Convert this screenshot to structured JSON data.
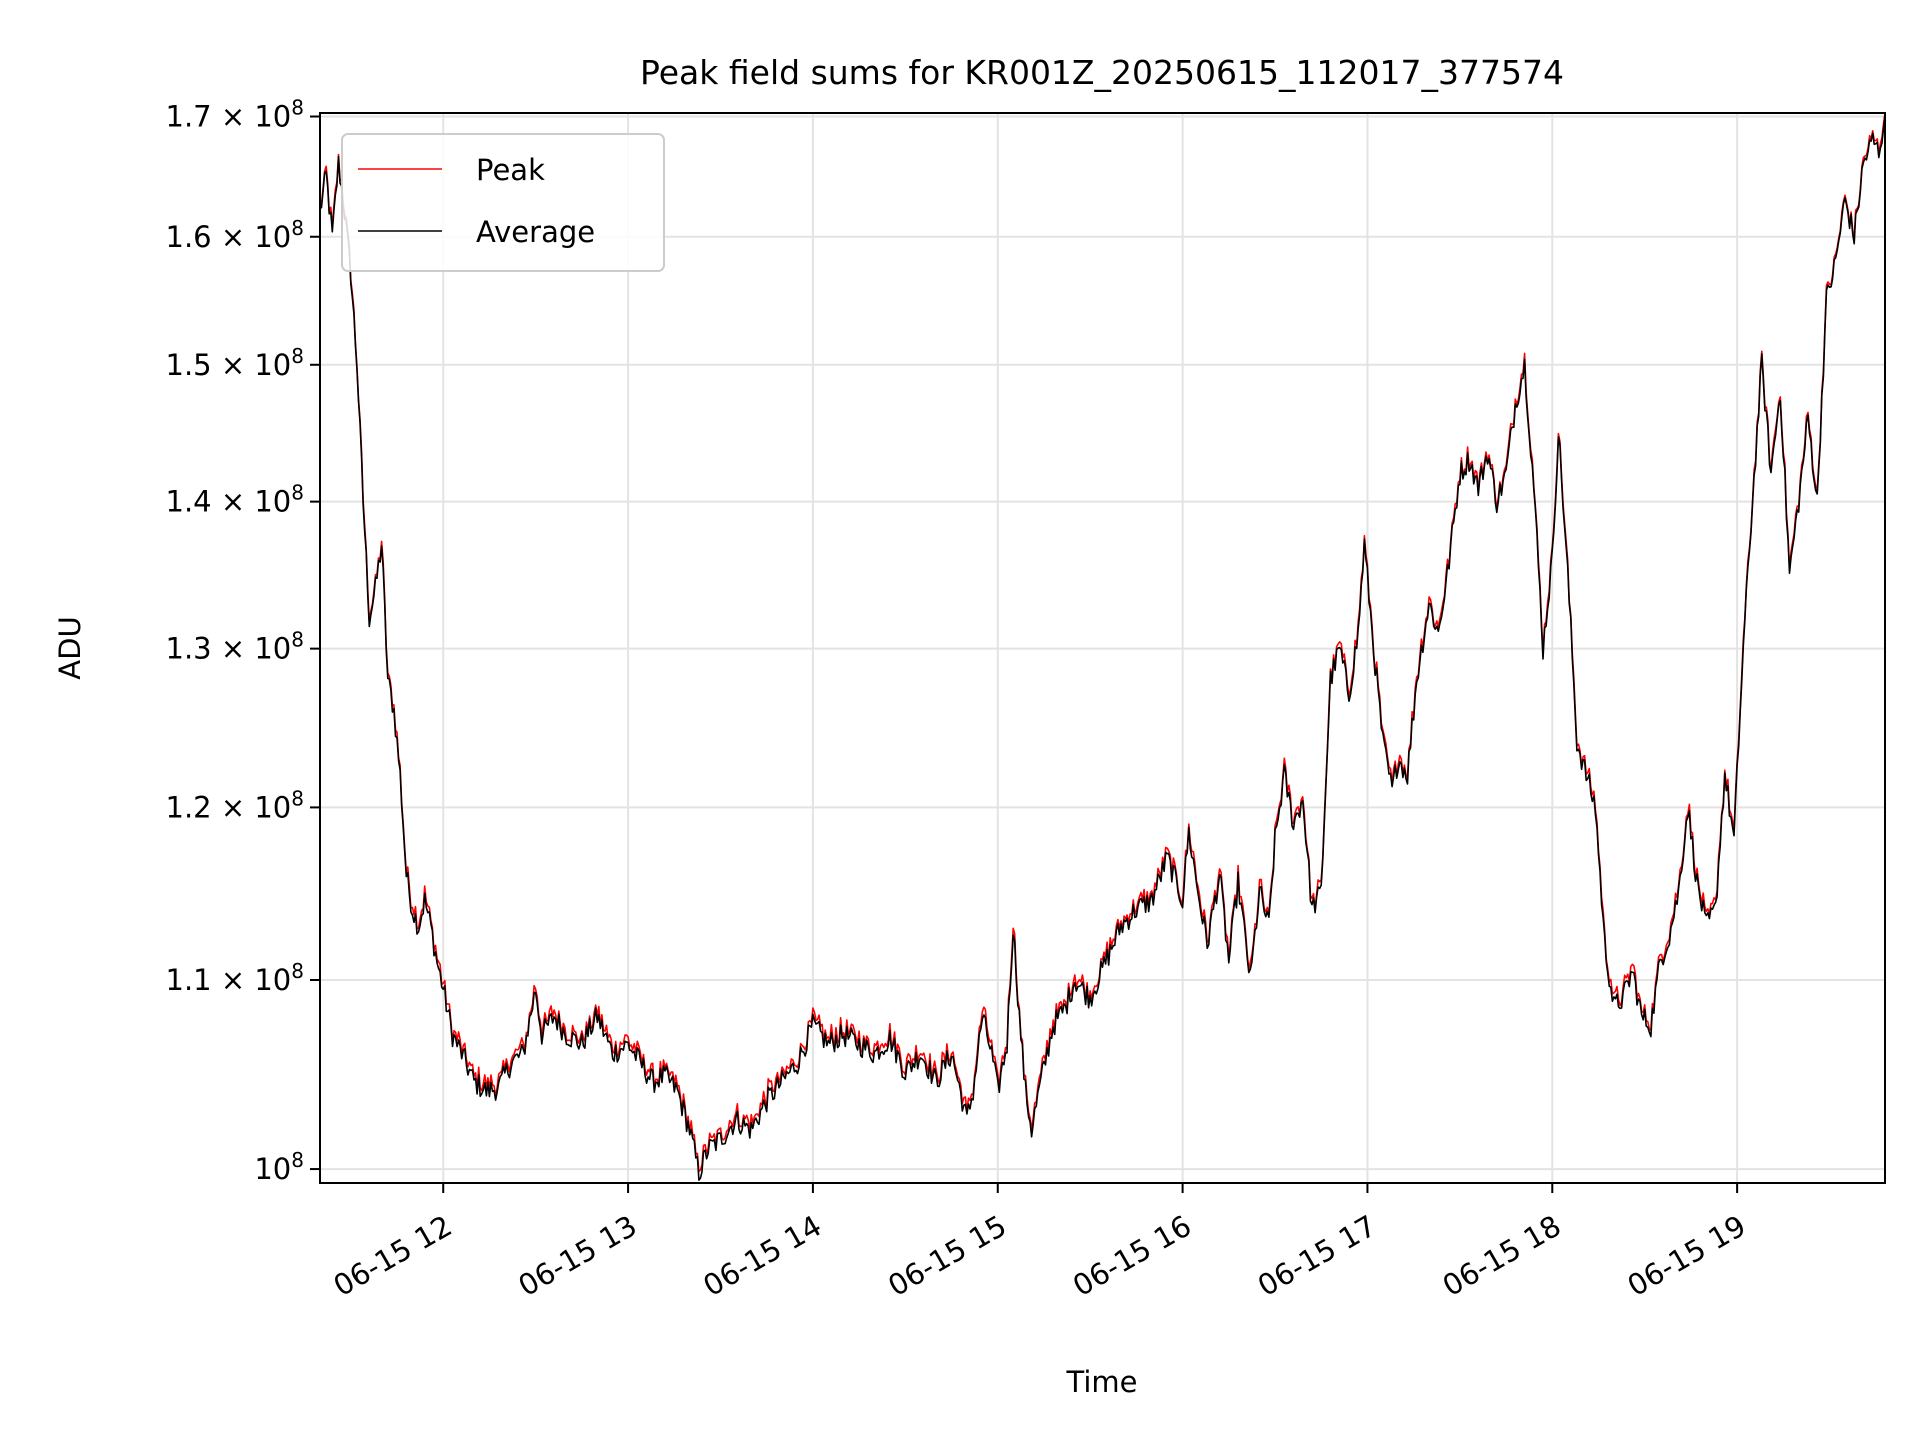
{
  "chart_data": {
    "type": "line",
    "title": "Peak field sums for KR001Z_20250615_112017_377574",
    "xlabel": "Time",
    "ylabel": "ADU",
    "y_scale": "log",
    "ylim": [
      99300000,
      170300000
    ],
    "xlim": [
      "2025-06-15 11:20",
      "2025-06-15 19:48"
    ],
    "grid": true,
    "legend_position": "upper-left",
    "x_ticks": [
      {
        "t": "2025-06-15 12:00",
        "label": "06-15 12"
      },
      {
        "t": "2025-06-15 13:00",
        "label": "06-15 13"
      },
      {
        "t": "2025-06-15 14:00",
        "label": "06-15 14"
      },
      {
        "t": "2025-06-15 15:00",
        "label": "06-15 15"
      },
      {
        "t": "2025-06-15 16:00",
        "label": "06-15 16"
      },
      {
        "t": "2025-06-15 17:00",
        "label": "06-15 17"
      },
      {
        "t": "2025-06-15 18:00",
        "label": "06-15 18"
      },
      {
        "t": "2025-06-15 19:00",
        "label": "06-15 19"
      }
    ],
    "y_ticks": [
      {
        "v": 100000000,
        "mant": "10",
        "exp": "8",
        "mult": ""
      },
      {
        "v": 110000000,
        "mant": "1.1",
        "exp": "8",
        "mult": "×"
      },
      {
        "v": 120000000,
        "mant": "1.2",
        "exp": "8",
        "mult": "×"
      },
      {
        "v": 130000000,
        "mant": "1.3",
        "exp": "8",
        "mult": "×"
      },
      {
        "v": 140000000,
        "mant": "1.4",
        "exp": "8",
        "mult": "×"
      },
      {
        "v": 150000000,
        "mant": "1.5",
        "exp": "8",
        "mult": "×"
      },
      {
        "v": 160000000,
        "mant": "1.6",
        "exp": "8",
        "mult": "×"
      },
      {
        "v": 170000000,
        "mant": "1.7",
        "exp": "8",
        "mult": "×"
      }
    ],
    "series": [
      {
        "name": "Peak",
        "color": "#ff0000",
        "offset": 300000
      },
      {
        "name": "Average",
        "color": "#000000",
        "offset": 0
      }
    ],
    "anchors": [
      [
        "11:20",
        162000000
      ],
      [
        "11:22",
        165000000
      ],
      [
        "11:24",
        160000000
      ],
      [
        "11:26",
        166000000
      ],
      [
        "11:28",
        162000000
      ],
      [
        "11:30",
        157000000
      ],
      [
        "11:32",
        150000000
      ],
      [
        "11:34",
        140000000
      ],
      [
        "11:36",
        132000000
      ],
      [
        "11:38",
        134000000
      ],
      [
        "11:40",
        137000000
      ],
      [
        "11:42",
        128000000
      ],
      [
        "11:44",
        126000000
      ],
      [
        "11:46",
        122000000
      ],
      [
        "11:48",
        116000000
      ],
      [
        "11:50",
        114000000
      ],
      [
        "11:52",
        113000000
      ],
      [
        "11:54",
        114500000
      ],
      [
        "11:56",
        113000000
      ],
      [
        "11:58",
        111000000
      ],
      [
        "12:00",
        109500000
      ],
      [
        "12:03",
        107000000
      ],
      [
        "12:06",
        106000000
      ],
      [
        "12:10",
        104500000
      ],
      [
        "12:14",
        104000000
      ],
      [
        "12:18",
        104200000
      ],
      [
        "12:22",
        105500000
      ],
      [
        "12:26",
        106000000
      ],
      [
        "12:30",
        109500000
      ],
      [
        "12:32",
        107000000
      ],
      [
        "12:36",
        108000000
      ],
      [
        "12:40",
        107000000
      ],
      [
        "12:45",
        106500000
      ],
      [
        "12:50",
        108000000
      ],
      [
        "12:55",
        106000000
      ],
      [
        "13:00",
        106500000
      ],
      [
        "13:04",
        105500000
      ],
      [
        "13:08",
        104500000
      ],
      [
        "13:12",
        104800000
      ],
      [
        "13:16",
        104000000
      ],
      [
        "13:20",
        102000000
      ],
      [
        "13:23",
        99800000
      ],
      [
        "13:26",
        101000000
      ],
      [
        "13:30",
        101500000
      ],
      [
        "13:35",
        102500000
      ],
      [
        "13:40",
        102000000
      ],
      [
        "13:45",
        103500000
      ],
      [
        "13:50",
        104500000
      ],
      [
        "13:55",
        105500000
      ],
      [
        "14:00",
        107500000
      ],
      [
        "14:05",
        106500000
      ],
      [
        "14:10",
        107000000
      ],
      [
        "14:15",
        106500000
      ],
      [
        "14:20",
        106000000
      ],
      [
        "14:25",
        106800000
      ],
      [
        "14:30",
        105000000
      ],
      [
        "14:35",
        106000000
      ],
      [
        "14:40",
        104500000
      ],
      [
        "14:45",
        106000000
      ],
      [
        "14:50",
        102500000
      ],
      [
        "14:52",
        104000000
      ],
      [
        "14:55",
        108000000
      ],
      [
        "14:58",
        106000000
      ],
      [
        "15:00",
        104000000
      ],
      [
        "15:03",
        106500000
      ],
      [
        "15:05",
        113000000
      ],
      [
        "15:07",
        108000000
      ],
      [
        "15:09",
        104000000
      ],
      [
        "15:11",
        102000000
      ],
      [
        "15:14",
        104500000
      ],
      [
        "15:18",
        107500000
      ],
      [
        "15:22",
        108500000
      ],
      [
        "15:25",
        110000000
      ],
      [
        "15:30",
        109000000
      ],
      [
        "15:35",
        111000000
      ],
      [
        "15:40",
        113000000
      ],
      [
        "15:45",
        114000000
      ],
      [
        "15:50",
        114500000
      ],
      [
        "15:55",
        117000000
      ],
      [
        "16:00",
        114500000
      ],
      [
        "16:02",
        118500000
      ],
      [
        "16:05",
        115000000
      ],
      [
        "16:08",
        112000000
      ],
      [
        "16:12",
        116000000
      ],
      [
        "16:15",
        111000000
      ],
      [
        "16:18",
        115500000
      ],
      [
        "16:22",
        110000000
      ],
      [
        "16:25",
        115000000
      ],
      [
        "16:28",
        113000000
      ],
      [
        "16:30",
        118000000
      ],
      [
        "16:33",
        122000000
      ],
      [
        "16:36",
        119000000
      ],
      [
        "16:39",
        120500000
      ],
      [
        "16:42",
        114000000
      ],
      [
        "16:45",
        115000000
      ],
      [
        "16:48",
        128000000
      ],
      [
        "16:51",
        130000000
      ],
      [
        "16:54",
        127000000
      ],
      [
        "16:57",
        131000000
      ],
      [
        "16:59",
        137000000
      ],
      [
        "17:02",
        130000000
      ],
      [
        "17:05",
        124000000
      ],
      [
        "17:08",
        121000000
      ],
      [
        "17:10",
        123000000
      ],
      [
        "17:13",
        122000000
      ],
      [
        "17:16",
        128000000
      ],
      [
        "17:20",
        133000000
      ],
      [
        "17:23",
        131000000
      ],
      [
        "17:26",
        135000000
      ],
      [
        "17:30",
        142000000
      ],
      [
        "17:33",
        143000000
      ],
      [
        "17:36",
        141000000
      ],
      [
        "17:39",
        143500000
      ],
      [
        "17:42",
        140000000
      ],
      [
        "17:45",
        142000000
      ],
      [
        "17:48",
        147000000
      ],
      [
        "17:51",
        150000000
      ],
      [
        "17:54",
        141000000
      ],
      [
        "17:57",
        130000000
      ],
      [
        "18:00",
        136000000
      ],
      [
        "18:02",
        145000000
      ],
      [
        "18:05",
        135000000
      ],
      [
        "18:08",
        124000000
      ],
      [
        "18:11",
        122000000
      ],
      [
        "18:14",
        120000000
      ],
      [
        "18:17",
        112000000
      ],
      [
        "18:20",
        108500000
      ],
      [
        "18:23",
        109000000
      ],
      [
        "18:26",
        110500000
      ],
      [
        "18:29",
        108000000
      ],
      [
        "18:32",
        107500000
      ],
      [
        "18:35",
        111000000
      ],
      [
        "18:38",
        112500000
      ],
      [
        "18:41",
        115000000
      ],
      [
        "18:44",
        120000000
      ],
      [
        "18:47",
        115500000
      ],
      [
        "18:50",
        113000000
      ],
      [
        "18:53",
        114000000
      ],
      [
        "18:56",
        122000000
      ],
      [
        "18:59",
        118000000
      ],
      [
        "19:02",
        130000000
      ],
      [
        "19:05",
        140000000
      ],
      [
        "19:08",
        150000000
      ],
      [
        "19:11",
        142000000
      ],
      [
        "19:14",
        148000000
      ],
      [
        "19:17",
        135000000
      ],
      [
        "19:20",
        140000000
      ],
      [
        "19:23",
        146000000
      ],
      [
        "19:26",
        140000000
      ],
      [
        "19:29",
        155000000
      ],
      [
        "19:32",
        158000000
      ],
      [
        "19:35",
        163000000
      ],
      [
        "19:38",
        160000000
      ],
      [
        "19:41",
        166000000
      ],
      [
        "19:44",
        168000000
      ],
      [
        "19:46",
        167000000
      ],
      [
        "19:48",
        170000000
      ]
    ]
  }
}
